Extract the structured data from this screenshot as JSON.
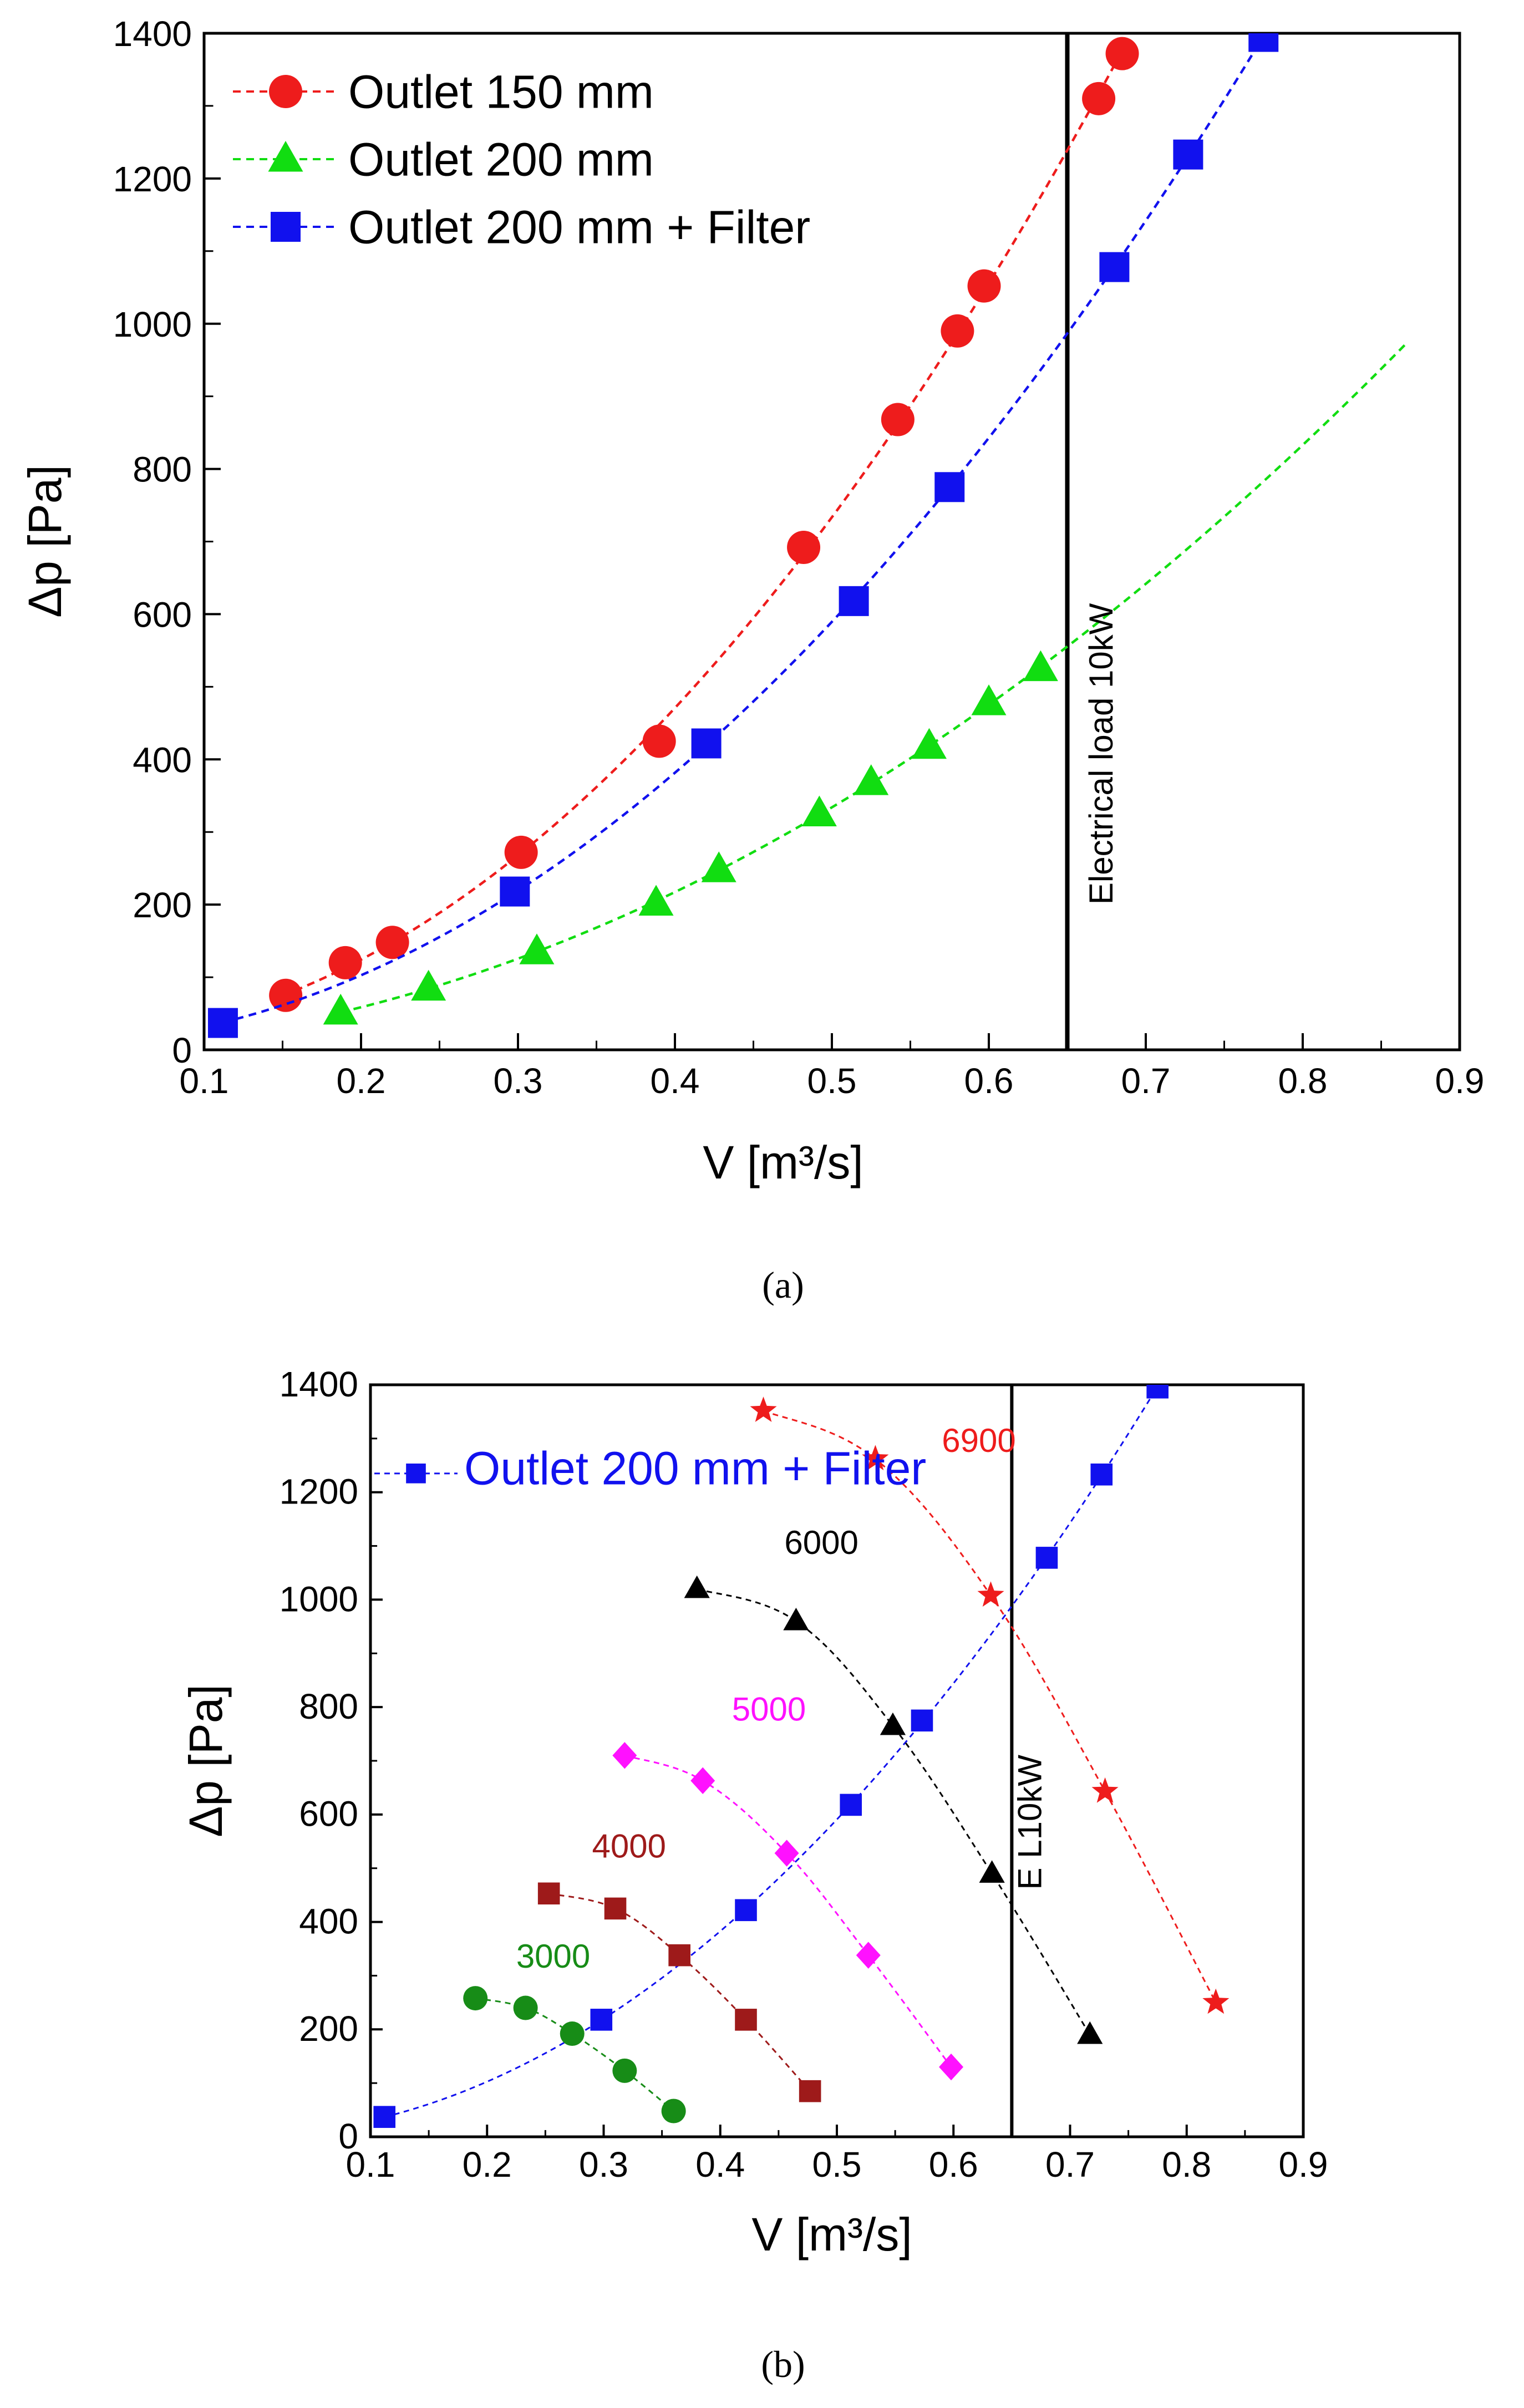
{
  "captions": {
    "a": "(a)",
    "b": "(b)"
  },
  "colors": {
    "outlet150": "#ee1c1c",
    "outlet200": "#11dd11",
    "filter": "#1111ee",
    "rpm3000": "#178c17",
    "rpm4000": "#9e1a1a",
    "rpm5000": "#ff11ff",
    "rpm6000": "#000000",
    "rpm6900": "#ee1c1c"
  },
  "chart_data": [
    {
      "type": "line",
      "panel": "a",
      "xlabel": "V [m³/s]",
      "ylabel": "Δp [Pa]",
      "xlim": [
        0.1,
        0.9
      ],
      "ylim": [
        0,
        1400
      ],
      "xticks": [
        "0.1",
        "0.2",
        "0.3",
        "0.4",
        "0.5",
        "0.6",
        "0.7",
        "0.8",
        "0.9"
      ],
      "yticks": [
        "0",
        "200",
        "400",
        "600",
        "800",
        "1000",
        "1200",
        "1400"
      ],
      "grid": false,
      "legend_position": "top-left",
      "vline": {
        "x": 0.65,
        "label": "Electrical load 10kW"
      },
      "series": [
        {
          "name": "Outlet 150 mm",
          "marker": "circle",
          "color": "#ee1c1c",
          "points": [
            [
              0.152,
              75
            ],
            [
              0.19,
              120
            ],
            [
              0.22,
              148
            ],
            [
              0.302,
              272
            ],
            [
              0.39,
              425
            ],
            [
              0.482,
              692
            ],
            [
              0.542,
              868
            ],
            [
              0.58,
              990
            ],
            [
              0.597,
              1052
            ],
            [
              0.67,
              1310
            ],
            [
              0.685,
              1372
            ]
          ],
          "fit_x": [
            0.15,
            0.19,
            0.22,
            0.3,
            0.39,
            0.48,
            0.54,
            0.58,
            0.6,
            0.67,
            0.685
          ]
        },
        {
          "name": "Outlet 200 mm",
          "marker": "triangle",
          "color": "#11dd11",
          "points": [
            [
              0.187,
              52
            ],
            [
              0.243,
              85
            ],
            [
              0.312,
              135
            ],
            [
              0.388,
              202
            ],
            [
              0.428,
              248
            ],
            [
              0.492,
              325
            ],
            [
              0.525,
              368
            ],
            [
              0.562,
              418
            ],
            [
              0.6,
              478
            ],
            [
              0.633,
              525
            ]
          ],
          "fit_x": [
            0.187,
            0.25,
            0.31,
            0.39,
            0.43,
            0.49,
            0.53,
            0.56,
            0.6,
            0.63,
            0.7,
            0.77,
            0.865
          ]
        },
        {
          "name": "Outlet 200 mm + Filter",
          "marker": "square",
          "color": "#1111ee",
          "points": [
            [
              0.112,
              37
            ],
            [
              0.298,
              218
            ],
            [
              0.42,
              422
            ],
            [
              0.514,
              618
            ],
            [
              0.575,
              775
            ],
            [
              0.68,
              1078
            ],
            [
              0.727,
              1233
            ],
            [
              0.775,
              1395
            ]
          ],
          "fit_x": [
            0.112,
            0.2,
            0.298,
            0.36,
            0.42,
            0.514,
            0.575,
            0.63,
            0.68,
            0.727,
            0.775
          ]
        }
      ]
    },
    {
      "type": "line",
      "panel": "b",
      "xlabel": "V [m³/s]",
      "ylabel": "Δp [Pa]",
      "xlim": [
        0.1,
        0.9
      ],
      "ylim": [
        0,
        1400
      ],
      "xticks": [
        "0.1",
        "0.2",
        "0.3",
        "0.4",
        "0.5",
        "0.6",
        "0.7",
        "0.8",
        "0.9"
      ],
      "yticks": [
        "0",
        "200",
        "400",
        "600",
        "800",
        "1000",
        "1200",
        "1400"
      ],
      "grid": false,
      "legend_position": "top-left",
      "vline": {
        "x": 0.65,
        "label": "E L10kW"
      },
      "series": [
        {
          "name": "Outlet 200 mm + Filter",
          "marker": "square",
          "color": "#1111ee",
          "points": [
            [
              0.112,
              37
            ],
            [
              0.298,
              218
            ],
            [
              0.422,
              422
            ],
            [
              0.512,
              618
            ],
            [
              0.573,
              775
            ],
            [
              0.68,
              1078
            ],
            [
              0.727,
              1233
            ],
            [
              0.775,
              1395
            ]
          ],
          "fit_x": [
            0.112,
            0.2,
            0.298,
            0.36,
            0.422,
            0.512,
            0.573,
            0.63,
            0.68,
            0.727,
            0.775
          ]
        },
        {
          "name": "3000",
          "marker": "circle",
          "color": "#178c17",
          "points": [
            [
              0.19,
              258
            ],
            [
              0.233,
              240
            ],
            [
              0.273,
              192
            ],
            [
              0.318,
              123
            ],
            [
              0.36,
              48
            ]
          ]
        },
        {
          "name": "4000",
          "marker": "square",
          "color": "#9e1a1a",
          "points": [
            [
              0.253,
              453
            ],
            [
              0.31,
              425
            ],
            [
              0.365,
              338
            ],
            [
              0.422,
              218
            ],
            [
              0.477,
              85
            ]
          ]
        },
        {
          "name": "5000",
          "marker": "diamond",
          "color": "#ff11ff",
          "points": [
            [
              0.318,
              710
            ],
            [
              0.385,
              663
            ],
            [
              0.457,
              528
            ],
            [
              0.527,
              338
            ],
            [
              0.598,
              130
            ]
          ]
        },
        {
          "name": "6000",
          "marker": "triangle",
          "color": "#000000",
          "points": [
            [
              0.38,
              1020
            ],
            [
              0.465,
              960
            ],
            [
              0.548,
              765
            ],
            [
              0.633,
              490
            ],
            [
              0.717,
              190
            ]
          ]
        },
        {
          "name": "6900",
          "marker": "star",
          "color": "#ee1c1c",
          "points": [
            [
              0.437,
              1352
            ],
            [
              0.533,
              1262
            ],
            [
              0.632,
              1008
            ],
            [
              0.73,
              643
            ],
            [
              0.825,
              250
            ]
          ]
        }
      ]
    }
  ]
}
